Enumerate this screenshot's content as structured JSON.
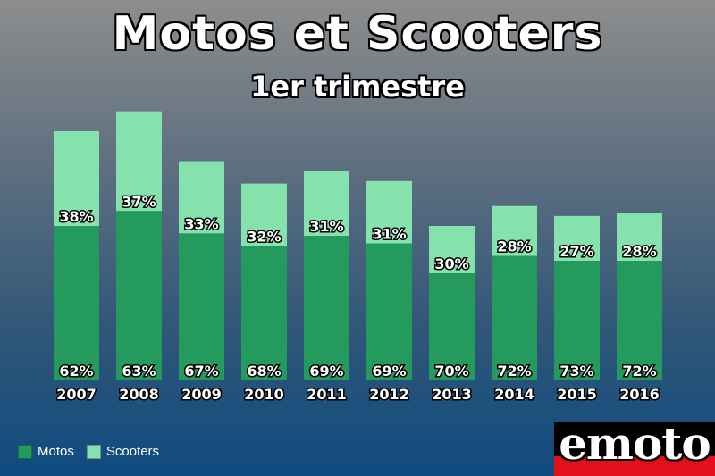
{
  "header": {
    "title": "Motos et Scooters",
    "subtitle": "1er trimestre"
  },
  "legend": {
    "items": [
      {
        "label": "Motos",
        "color": "#249a5c"
      },
      {
        "label": "Scooters",
        "color": "#86e2ad"
      }
    ]
  },
  "logo": {
    "text": "emoto"
  },
  "chart_data": {
    "type": "bar",
    "stacked": true,
    "title": "Motos et Scooters",
    "subtitle": "1er trimestre",
    "categories": [
      "2007",
      "2008",
      "2009",
      "2010",
      "2011",
      "2012",
      "2013",
      "2014",
      "2015",
      "2016"
    ],
    "totals": [
      100,
      108,
      88,
      79,
      84,
      80,
      62,
      70,
      66,
      67
    ],
    "series": [
      {
        "name": "Motos",
        "color": "#249a5c",
        "percent_labels": [
          "62%",
          "63%",
          "67%",
          "68%",
          "69%",
          "69%",
          "70%",
          "72%",
          "73%",
          "72%"
        ],
        "values": [
          62,
          68,
          59,
          54,
          58,
          55,
          43,
          50,
          48,
          48
        ]
      },
      {
        "name": "Scooters",
        "color": "#86e2ad",
        "percent_labels": [
          "38%",
          "37%",
          "33%",
          "32%",
          "31%",
          "31%",
          "30%",
          "28%",
          "27%",
          "28%"
        ],
        "values": [
          38,
          40,
          29,
          25,
          26,
          25,
          19,
          20,
          18,
          19
        ]
      }
    ],
    "legend_position": "bottom-left",
    "grid": false
  }
}
